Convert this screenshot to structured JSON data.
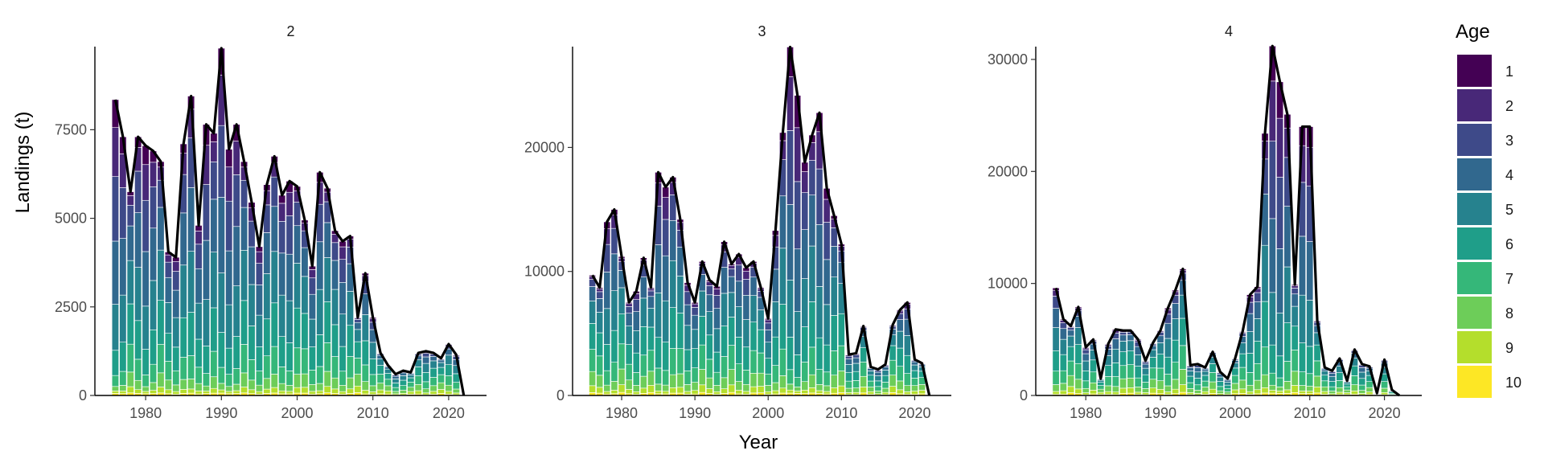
{
  "chart_data": {
    "type": "bar",
    "subtype": "stacked bar with total line, faceted",
    "xlabel": "Year",
    "ylabel": "Landings (t)",
    "legend": {
      "title": "Age",
      "position": "right",
      "labels": [
        "1",
        "2",
        "3",
        "4",
        "5",
        "6",
        "7",
        "8",
        "9",
        "10"
      ],
      "colors": [
        "#440154",
        "#482878",
        "#3E4A89",
        "#31688E",
        "#26828E",
        "#1F9E89",
        "#35B779",
        "#6DCD59",
        "#B4DE2C",
        "#FDE725"
      ]
    },
    "total_line_color": "#000000",
    "bar_outline_color": "#ffffff",
    "panels": [
      {
        "label": "2",
        "years": [
          1976,
          1977,
          1978,
          1979,
          1980,
          1981,
          1982,
          1983,
          1984,
          1985,
          1986,
          1987,
          1988,
          1989,
          1990,
          1991,
          1992,
          1993,
          1994,
          1995,
          1996,
          1997,
          1998,
          1999,
          2000,
          2001,
          2002,
          2003,
          2004,
          2005,
          2006,
          2007,
          2008,
          2009,
          2010,
          2011,
          2012,
          2013,
          2014,
          2015,
          2016,
          2017,
          2018,
          2019,
          2020,
          2021,
          2022
        ],
        "totals": [
          8350,
          7300,
          5750,
          7300,
          7050,
          6900,
          6600,
          4050,
          3900,
          7100,
          8450,
          4800,
          7650,
          7400,
          9800,
          6950,
          7650,
          6600,
          5450,
          4200,
          5950,
          6750,
          5650,
          6050,
          5900,
          4950,
          3650,
          6300,
          5850,
          4650,
          4350,
          4500,
          2200,
          3450,
          2200,
          1200,
          850,
          600,
          700,
          650,
          1200,
          1250,
          1200,
          1050,
          1450,
          1150,
          0
        ],
        "ylim": [
          0,
          9800
        ],
        "yticks": [
          0,
          2500,
          5000,
          7500
        ],
        "xticks": [
          1980,
          1990,
          2000,
          2010,
          2020
        ]
      },
      {
        "label": "3",
        "years": [
          1976,
          1977,
          1978,
          1979,
          1980,
          1981,
          1982,
          1983,
          1984,
          1985,
          1986,
          1987,
          1988,
          1989,
          1990,
          1991,
          1992,
          1993,
          1994,
          1995,
          1996,
          1997,
          1998,
          1999,
          2000,
          2001,
          2002,
          2003,
          2004,
          2005,
          2006,
          2007,
          2008,
          2009,
          2010,
          2011,
          2012,
          2013,
          2014,
          2015,
          2016,
          2017,
          2018,
          2019,
          2020,
          2021,
          2022
        ],
        "totals": [
          9700,
          8700,
          14000,
          15000,
          11200,
          7500,
          8400,
          11100,
          8700,
          18000,
          16800,
          17600,
          14200,
          9100,
          7500,
          10800,
          9300,
          8800,
          12400,
          10600,
          11400,
          10300,
          10800,
          8700,
          6200,
          13300,
          21200,
          28100,
          24200,
          18800,
          21000,
          22800,
          16700,
          14500,
          12200,
          3300,
          3400,
          5600,
          2300,
          2100,
          2500,
          5700,
          6900,
          7500,
          2900,
          2600,
          0
        ],
        "ylim": [
          0,
          28000
        ],
        "yticks": [
          0,
          10000,
          20000
        ],
        "xticks": [
          1980,
          1990,
          2000,
          2010,
          2020
        ]
      },
      {
        "label": "4",
        "years": [
          1976,
          1977,
          1978,
          1979,
          1980,
          1981,
          1982,
          1983,
          1984,
          1985,
          1986,
          1987,
          1988,
          1989,
          1990,
          1991,
          1992,
          1993,
          1994,
          1995,
          1996,
          1997,
          1998,
          1999,
          2000,
          2001,
          2002,
          2003,
          2004,
          2005,
          2006,
          2007,
          2008,
          2009,
          2010,
          2011,
          2012,
          2013,
          2014,
          2015,
          2016,
          2017,
          2018,
          2019,
          2020,
          2021,
          2022
        ],
        "totals": [
          9600,
          6800,
          6200,
          7900,
          4300,
          5000,
          1500,
          4600,
          5900,
          5800,
          5800,
          5000,
          3100,
          4700,
          5800,
          7800,
          9400,
          11300,
          2700,
          2800,
          2500,
          3900,
          2100,
          1500,
          3300,
          5700,
          9000,
          9700,
          23400,
          31200,
          28000,
          25100,
          9900,
          24000,
          24000,
          6700,
          2500,
          2200,
          3300,
          1300,
          4100,
          2800,
          2600,
          200,
          3200,
          500,
          0
        ],
        "ylim": [
          0,
          31000
        ],
        "yticks": [
          0,
          10000,
          20000,
          30000
        ],
        "xticks": [
          1980,
          1990,
          2000,
          2010,
          2020
        ]
      }
    ]
  }
}
